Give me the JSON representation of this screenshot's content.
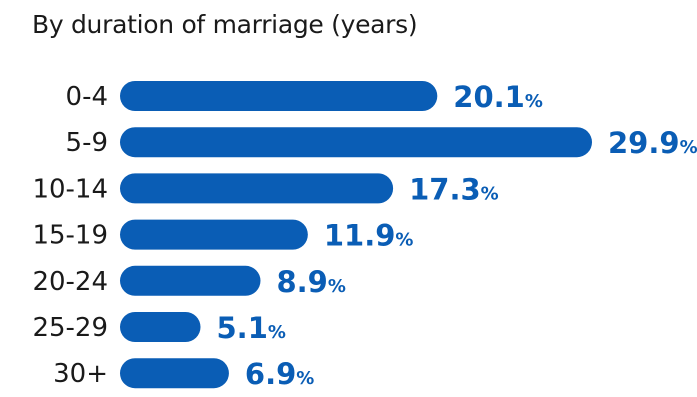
{
  "subtitle": "By duration of marriage (years)",
  "colors": {
    "bar": "#0a5db5",
    "value_text": "#0a5db5",
    "label_text": "#1a1a1a"
  },
  "chart_data": {
    "type": "bar",
    "orientation": "horizontal",
    "subtitle": "By duration of marriage (years)",
    "categories": [
      "0-4",
      "5-9",
      "10-14",
      "15-19",
      "20-24",
      "25-29",
      "30+"
    ],
    "values": [
      20.1,
      29.9,
      17.3,
      11.9,
      8.9,
      5.1,
      6.9
    ],
    "value_labels": [
      "20.1",
      "29.9",
      "17.3",
      "11.9",
      "8.9",
      "5.1",
      "6.9"
    ],
    "value_suffix": "%",
    "xlim": [
      0,
      29.9
    ],
    "grid": false,
    "legend": "none"
  }
}
